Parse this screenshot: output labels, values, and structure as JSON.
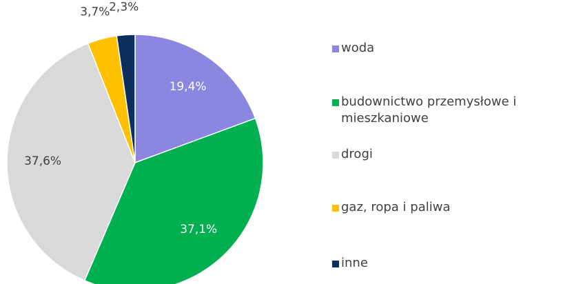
{
  "chart_data": {
    "type": "pie",
    "categories": [
      "woda",
      "budownictwo przemysłowe i mieszkaniowe",
      "drogi",
      "gaz, ropa i paliwa",
      "inne"
    ],
    "values": [
      19.4,
      37.1,
      37.6,
      3.7,
      2.3
    ],
    "value_labels": [
      "19,4%",
      "37,1%",
      "37,6%",
      "3,7%",
      "2,3%"
    ],
    "colors": [
      "#8b86e0",
      "#00b050",
      "#d9d9d9",
      "#ffc000",
      "#0b2e5c"
    ],
    "legend": "right"
  }
}
